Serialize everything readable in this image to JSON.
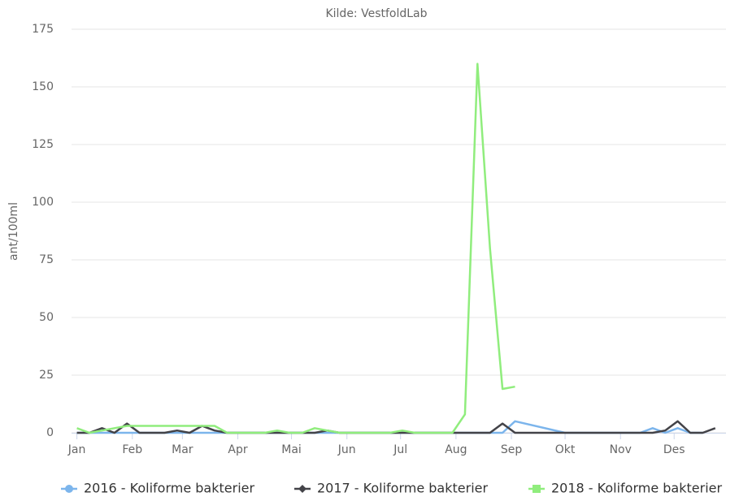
{
  "chart_data": {
    "type": "line",
    "subtitle": "Kilde: VestfoldLab",
    "y_label": "ant/100ml",
    "xlim": [
      -3,
      363
    ],
    "xticks": [
      {
        "value": 0,
        "label": "Jan"
      },
      {
        "value": 31,
        "label": "Feb"
      },
      {
        "value": 59,
        "label": "Mar"
      },
      {
        "value": 90,
        "label": "Apr"
      },
      {
        "value": 120,
        "label": "Mai"
      },
      {
        "value": 151,
        "label": "Jun"
      },
      {
        "value": 181,
        "label": "Jul"
      },
      {
        "value": 212,
        "label": "Aug"
      },
      {
        "value": 243,
        "label": "Sep"
      },
      {
        "value": 273,
        "label": "Okt"
      },
      {
        "value": 304,
        "label": "Nov"
      },
      {
        "value": 334,
        "label": "Des"
      }
    ],
    "ylim": [
      0,
      175
    ],
    "yticks": [
      0,
      25,
      50,
      75,
      100,
      125,
      150,
      175
    ],
    "grid": true,
    "legend": "bottom",
    "series": [
      {
        "name": "2016 - Koliforme bakterier",
        "color": "#7cb5ec",
        "marker": "circle",
        "x": [
          0,
          7,
          14,
          21,
          28,
          35,
          42,
          49,
          56,
          63,
          70,
          77,
          84,
          91,
          98,
          105,
          112,
          119,
          126,
          133,
          140,
          147,
          154,
          161,
          168,
          175,
          182,
          189,
          196,
          203,
          210,
          217,
          224,
          231,
          238,
          245,
          273,
          280,
          287,
          294,
          301,
          308,
          315,
          322,
          329,
          336,
          343,
          350
        ],
        "values": [
          0,
          0,
          0,
          0,
          0,
          0,
          0,
          0,
          0,
          0,
          0,
          0,
          0,
          0,
          0,
          0,
          0,
          0,
          0,
          0,
          0,
          0,
          0,
          0,
          0,
          0,
          0,
          0,
          0,
          0,
          0,
          0,
          0,
          0,
          0,
          5,
          0,
          0,
          0,
          0,
          0,
          0,
          0,
          2,
          0,
          2,
          0,
          0
        ]
      },
      {
        "name": "2017 - Koliforme bakterier",
        "color": "#434348",
        "marker": "diamond",
        "x": [
          0,
          7,
          14,
          21,
          28,
          35,
          42,
          49,
          56,
          63,
          70,
          77,
          84,
          91,
          98,
          105,
          112,
          119,
          126,
          133,
          140,
          147,
          154,
          161,
          168,
          175,
          182,
          189,
          196,
          203,
          210,
          217,
          224,
          231,
          238,
          245,
          252,
          259,
          266,
          273,
          280,
          287,
          294,
          301,
          308,
          315,
          322,
          329,
          336,
          343,
          350,
          357
        ],
        "values": [
          0,
          0,
          2,
          0,
          4,
          0,
          0,
          0,
          1,
          0,
          3,
          1,
          0,
          0,
          0,
          0,
          0,
          0,
          0,
          0,
          1,
          0,
          0,
          0,
          0,
          0,
          0,
          0,
          0,
          0,
          0,
          0,
          0,
          0,
          4,
          0,
          0,
          0,
          0,
          0,
          0,
          0,
          0,
          0,
          0,
          0,
          0,
          1,
          5,
          0,
          0,
          2
        ]
      },
      {
        "name": "2018 - Koliforme bakterier",
        "color": "#90ed7d",
        "marker": "square",
        "x": [
          0,
          7,
          14,
          21,
          28,
          35,
          42,
          49,
          56,
          63,
          70,
          77,
          84,
          91,
          98,
          105,
          112,
          119,
          126,
          133,
          140,
          147,
          154,
          161,
          168,
          175,
          182,
          189,
          196,
          203,
          210,
          217,
          224,
          231,
          238,
          245
        ],
        "values": [
          2,
          0,
          1,
          2,
          3,
          3,
          3,
          3,
          3,
          3,
          3,
          3,
          0,
          0,
          0,
          0,
          1,
          0,
          0,
          2,
          1,
          0,
          0,
          0,
          0,
          0,
          1,
          0,
          0,
          0,
          0,
          8,
          160,
          80,
          19,
          20
        ]
      }
    ]
  }
}
